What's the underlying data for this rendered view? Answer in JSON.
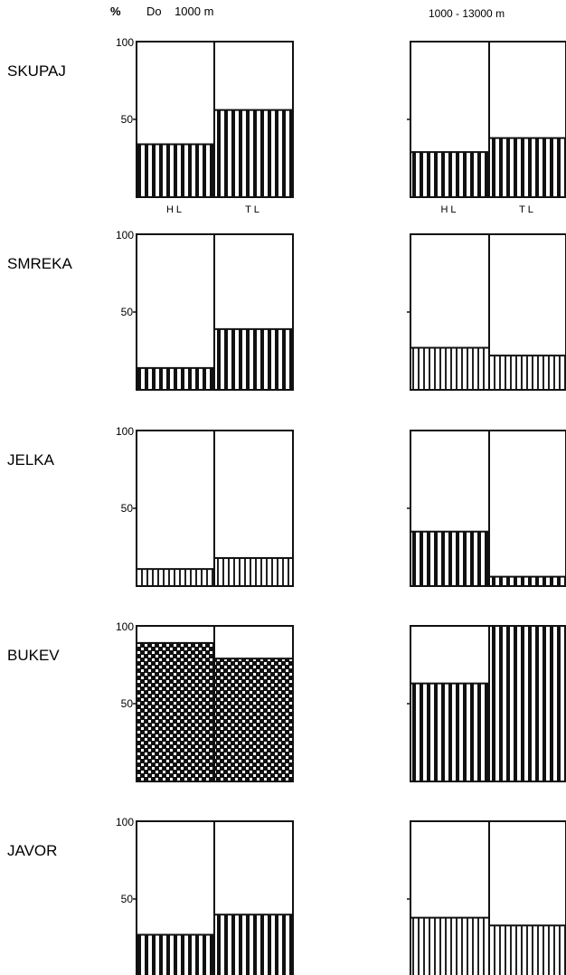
{
  "header": {
    "unit": "%",
    "left_range": "Do    1000 m",
    "right_range": "1000 - 13000 m"
  },
  "chart_data": {
    "type": "bar",
    "ylim": [
      0,
      100
    ],
    "yticks": [
      "100",
      "50"
    ],
    "categories": [
      "HL",
      "TL"
    ],
    "columns": [
      "Do 1000 m",
      "1000 - 13000 m"
    ],
    "rows": [
      {
        "label": "SKUPAJ",
        "left": {
          "HL": 34,
          "TL": 56,
          "pattern": [
            "stripe-heavy",
            "stripe-heavy"
          ]
        },
        "right": {
          "HL": 29,
          "TL": 38,
          "pattern": [
            "stripe-heavy",
            "stripe-heavy"
          ]
        }
      },
      {
        "label": "SMREKA",
        "left": {
          "HL": 14,
          "TL": 39,
          "pattern": [
            "stripe-heavy",
            "stripe-heavy"
          ]
        },
        "right": {
          "HL": 27,
          "TL": 22,
          "pattern": [
            "stripe-light",
            "stripe-light"
          ]
        }
      },
      {
        "label": "JELKA",
        "left": {
          "HL": 11,
          "TL": 18,
          "pattern": [
            "stripe-light",
            "stripe-light"
          ]
        },
        "right": {
          "HL": 35,
          "TL": 6,
          "pattern": [
            "stripe-heavy",
            "stripe-heavy"
          ]
        }
      },
      {
        "label": "BUKEV",
        "left": {
          "HL": 89,
          "TL": 79,
          "pattern": [
            "check",
            "check"
          ]
        },
        "right": {
          "HL": 63,
          "TL": 100,
          "pattern": [
            "stripe-heavy",
            "stripe-heavy"
          ]
        }
      },
      {
        "label": "JAVOR",
        "left": {
          "HL": 27,
          "TL": 40,
          "pattern": [
            "stripe-heavy",
            "stripe-heavy"
          ]
        },
        "right": {
          "HL": 38,
          "TL": 33,
          "pattern": [
            "stripe-light",
            "stripe-light"
          ]
        }
      }
    ]
  }
}
